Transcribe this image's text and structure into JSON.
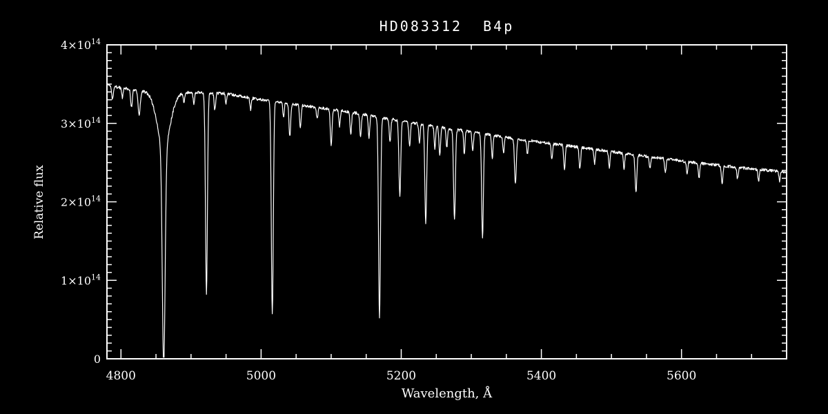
{
  "window": {
    "background": "#000000",
    "foreground": "#ffffff"
  },
  "chart_data": {
    "type": "line",
    "title": "HD083312  B4p",
    "xlabel": "Wavelength, Å",
    "ylabel": "Relative flux",
    "xlim": [
      4780,
      5750
    ],
    "ylim": [
      0,
      400000000000000.0
    ],
    "flux_unit": 100000000000000.0,
    "y_max_units": 4,
    "grid": false,
    "legend": "none",
    "x_ticks": [
      {
        "value": 4800,
        "label": "4800"
      },
      {
        "value": 5000,
        "label": "5000"
      },
      {
        "value": 5200,
        "label": "5200"
      },
      {
        "value": 5400,
        "label": "5400"
      },
      {
        "value": 5600,
        "label": "5600"
      }
    ],
    "x_minor_step": 50,
    "y_ticks": [
      {
        "value": 0,
        "label": "0",
        "sup": ""
      },
      {
        "value": 1,
        "label": "1×10",
        "sup": "14"
      },
      {
        "value": 2,
        "label": "2×10",
        "sup": "14"
      },
      {
        "value": 3,
        "label": "3×10",
        "sup": "14"
      },
      {
        "value": 4,
        "label": "4×10",
        "sup": "14"
      }
    ],
    "y_minor_step": 0.1,
    "sample_step": 0.5,
    "noise_amplitude": 0.018,
    "continuum_points_columns": [
      "wavelength_angstrom",
      "flux_1e14"
    ],
    "continuum_points": [
      [
        4780,
        3.5
      ],
      [
        4795,
        3.46
      ],
      [
        4810,
        3.44
      ],
      [
        4840,
        3.4
      ],
      [
        4880,
        3.38
      ],
      [
        4900,
        3.4
      ],
      [
        4950,
        3.38
      ],
      [
        5000,
        3.3
      ],
      [
        5050,
        3.24
      ],
      [
        5100,
        3.18
      ],
      [
        5150,
        3.11
      ],
      [
        5200,
        3.03
      ],
      [
        5250,
        2.96
      ],
      [
        5300,
        2.89
      ],
      [
        5350,
        2.82
      ],
      [
        5400,
        2.76
      ],
      [
        5450,
        2.7
      ],
      [
        5500,
        2.64
      ],
      [
        5550,
        2.58
      ],
      [
        5600,
        2.52
      ],
      [
        5650,
        2.47
      ],
      [
        5700,
        2.42
      ],
      [
        5750,
        2.38
      ]
    ],
    "absorption_lines_columns": [
      "center_angstrom",
      "depth_1e14",
      "sigma_angstrom"
    ],
    "absorption_lines": [
      [
        4788,
        0.18,
        1.2
      ],
      [
        4802,
        0.12,
        1.0
      ],
      [
        4815,
        0.22,
        1.2
      ],
      [
        4826,
        0.32,
        1.5
      ],
      [
        4861,
        0.7,
        9.0
      ],
      [
        4861,
        2.78,
        2.0
      ],
      [
        4890,
        0.12,
        1.0
      ],
      [
        4904,
        0.15,
        1.0
      ],
      [
        4922,
        2.56,
        1.4
      ],
      [
        4934,
        0.22,
        1.1
      ],
      [
        4950,
        0.12,
        1.0
      ],
      [
        4985,
        0.15,
        1.0
      ],
      [
        5016,
        2.7,
        1.4
      ],
      [
        5032,
        0.18,
        1.0
      ],
      [
        5041,
        0.42,
        1.2
      ],
      [
        5056,
        0.3,
        1.1
      ],
      [
        5080,
        0.15,
        1.0
      ],
      [
        5100,
        0.45,
        1.2
      ],
      [
        5112,
        0.2,
        1.0
      ],
      [
        5128,
        0.28,
        1.1
      ],
      [
        5142,
        0.3,
        1.1
      ],
      [
        5154,
        0.28,
        1.1
      ],
      [
        5169,
        2.56,
        1.4
      ],
      [
        5184,
        0.3,
        1.1
      ],
      [
        5198,
        0.95,
        1.3
      ],
      [
        5212,
        0.32,
        1.1
      ],
      [
        5226,
        0.25,
        1.0
      ],
      [
        5235,
        1.25,
        1.3
      ],
      [
        5248,
        0.3,
        1.0
      ],
      [
        5255,
        0.35,
        1.1
      ],
      [
        5265,
        0.25,
        1.0
      ],
      [
        5276,
        1.16,
        1.3
      ],
      [
        5290,
        0.3,
        1.0
      ],
      [
        5302,
        0.25,
        1.0
      ],
      [
        5316,
        1.32,
        1.3
      ],
      [
        5330,
        0.3,
        1.0
      ],
      [
        5346,
        0.2,
        1.0
      ],
      [
        5363,
        0.58,
        1.3
      ],
      [
        5380,
        0.18,
        1.0
      ],
      [
        5415,
        0.2,
        1.0
      ],
      [
        5433,
        0.32,
        1.1
      ],
      [
        5455,
        0.28,
        1.1
      ],
      [
        5476,
        0.18,
        1.0
      ],
      [
        5497,
        0.22,
        1.0
      ],
      [
        5518,
        0.2,
        1.0
      ],
      [
        5535,
        0.48,
        1.2
      ],
      [
        5555,
        0.15,
        1.0
      ],
      [
        5577,
        0.18,
        1.0
      ],
      [
        5608,
        0.15,
        1.0
      ],
      [
        5625,
        0.2,
        1.0
      ],
      [
        5658,
        0.25,
        1.1
      ],
      [
        5680,
        0.15,
        1.0
      ],
      [
        5710,
        0.15,
        1.0
      ],
      [
        5740,
        0.12,
        1.0
      ]
    ]
  }
}
